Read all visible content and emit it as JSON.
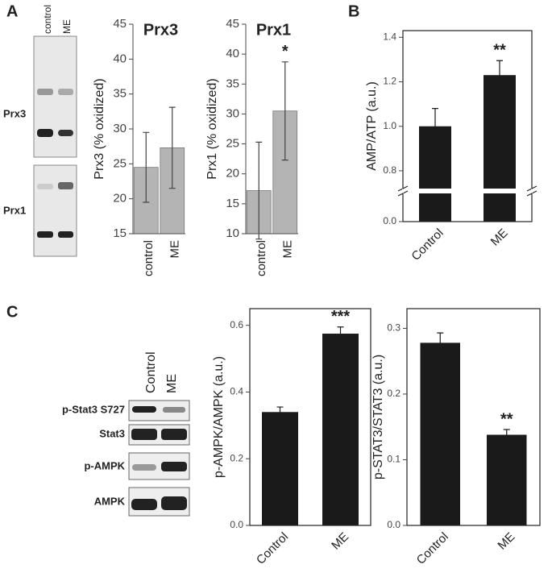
{
  "panels": [
    "A",
    "B",
    "C"
  ],
  "blots_a": {
    "lanes": [
      "control",
      "ME"
    ],
    "rows": [
      "Prx3",
      "Prx1"
    ]
  },
  "blots_c": {
    "lanes": [
      "Control",
      "ME"
    ],
    "rows": [
      "p-Stat3 S727",
      "Stat3",
      "p-AMPK",
      "AMPK"
    ]
  },
  "chart_data": [
    {
      "type": "bar",
      "title": "Prx3",
      "ylabel": "Prx3 (% oxidized)",
      "categories": [
        "control",
        "ME"
      ],
      "values": [
        24.5,
        27.3
      ],
      "errors": [
        5,
        5.8
      ],
      "color": "#b4b4b4",
      "ylim": [
        15,
        45
      ],
      "yticks": [
        15,
        20,
        25,
        30,
        35,
        40,
        45
      ]
    },
    {
      "type": "bar",
      "title": "Prx1",
      "ylabel": "Prx1 (% oxidized)",
      "categories": [
        "control",
        "ME"
      ],
      "values": [
        17.2,
        30.5
      ],
      "errors": [
        8.1,
        8.2
      ],
      "color": "#b4b4b4",
      "ylim": [
        10,
        45
      ],
      "yticks": [
        10,
        15,
        20,
        25,
        30,
        35,
        40,
        45
      ],
      "annotations": [
        {
          "text": "*",
          "category": "ME"
        }
      ]
    },
    {
      "type": "bar",
      "ylabel": "AMP/ATP (a.u.)",
      "categories": [
        "Control",
        "ME"
      ],
      "values": [
        1.0,
        1.23
      ],
      "errors": [
        0.08,
        0.065
      ],
      "color": "#1a1a1a",
      "ylim": [
        0,
        1.43
      ],
      "ybreak": [
        0.1,
        0.72
      ],
      "yticks": [
        {
          "value": 0,
          "label": "0.0"
        },
        0.8,
        {
          "value": 1,
          "label": "1.0"
        },
        1.2,
        1.4
      ],
      "annotations": [
        {
          "text": "**",
          "category": "ME"
        }
      ]
    },
    {
      "type": "bar",
      "ylabel": "p-AMPK/AMPK (a.u.)",
      "categories": [
        "Control",
        "ME"
      ],
      "values": [
        0.34,
        0.575
      ],
      "errors": [
        0.015,
        0.02
      ],
      "color": "#1a1a1a",
      "ylim": [
        0,
        0.65
      ],
      "yticks": [
        {
          "value": 0,
          "label": "0.0"
        },
        0.2,
        0.4,
        0.6
      ],
      "annotations": [
        {
          "text": "***",
          "category": "ME"
        }
      ]
    },
    {
      "type": "bar",
      "ylabel": "p-STAT3/STAT3 (a.u.)",
      "categories": [
        "Control",
        "ME"
      ],
      "values": [
        0.278,
        0.138
      ],
      "errors": [
        0.015,
        0.008
      ],
      "color": "#1a1a1a",
      "ylim": [
        0,
        0.33
      ],
      "yticks": [
        {
          "value": 0,
          "label": "0.0"
        },
        0.1,
        0.2,
        0.3
      ],
      "annotations": [
        {
          "text": "**",
          "category": "ME"
        }
      ]
    }
  ]
}
